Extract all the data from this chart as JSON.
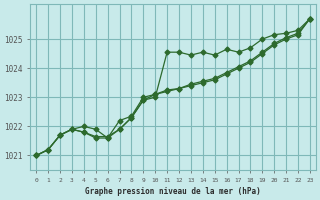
{
  "title": "Graphe pression niveau de la mer (hPa)",
  "bg_color": "#c8eaea",
  "grid_color": "#7fb8b8",
  "line_color": "#2d6a2d",
  "x_labels": [
    "0",
    "1",
    "2",
    "3",
    "4",
    "5",
    "6",
    "7",
    "8",
    "9",
    "10",
    "11",
    "12",
    "13",
    "14",
    "15",
    "16",
    "17",
    "18",
    "19",
    "20",
    "21",
    "22",
    "23"
  ],
  "ylim": [
    1020.5,
    1026.2
  ],
  "yticks": [
    1021,
    1022,
    1023,
    1024,
    1025
  ],
  "series1": [
    1021.0,
    1021.2,
    1021.7,
    1021.9,
    1021.8,
    1021.6,
    1021.6,
    1021.9,
    1022.3,
    1022.9,
    1023.0,
    1024.55,
    1024.55,
    1024.45,
    1024.55,
    1024.45,
    1024.65,
    1024.55,
    1024.7,
    1025.0,
    1025.15,
    1025.2,
    1025.3,
    1025.7
  ],
  "series2": [
    1021.0,
    1021.2,
    1021.7,
    1021.9,
    1022.0,
    1021.9,
    1021.6,
    1022.2,
    1022.35,
    1023.0,
    1023.1,
    1023.2,
    1023.3,
    1023.4,
    1023.5,
    1023.6,
    1023.8,
    1024.0,
    1024.2,
    1024.5,
    1024.8,
    1025.0,
    1025.15,
    1025.7
  ],
  "series3": [
    1021.0,
    1021.2,
    1021.7,
    1021.9,
    1021.8,
    1021.65,
    1021.65,
    1021.9,
    1022.3,
    1022.9,
    1023.1,
    1023.25,
    1023.3,
    1023.45,
    1023.55,
    1023.65,
    1023.85,
    1024.05,
    1024.25,
    1024.55,
    1024.85,
    1025.05,
    1025.2,
    1025.7
  ]
}
